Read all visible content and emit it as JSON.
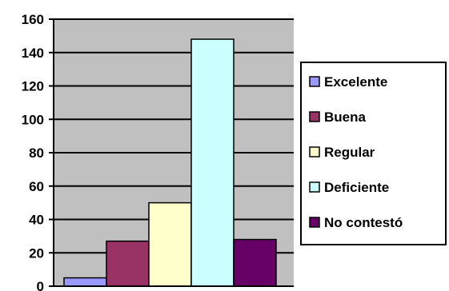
{
  "chart_data": {
    "type": "bar",
    "title": "",
    "xlabel": "",
    "ylabel": "",
    "ylim": [
      0,
      160
    ],
    "yticks": [
      0,
      20,
      40,
      60,
      80,
      100,
      120,
      140,
      160
    ],
    "grid": true,
    "legend_position": "right",
    "plot_background": "#c0c0c0",
    "series": [
      {
        "name": "Excelente",
        "value": 5,
        "color": "#9999ff"
      },
      {
        "name": "Buena",
        "value": 27,
        "color": "#993366"
      },
      {
        "name": "Regular",
        "value": 50,
        "color": "#ffffcc"
      },
      {
        "name": "Deficiente",
        "value": 148,
        "color": "#ccffff"
      },
      {
        "name": "No contestó",
        "value": 28,
        "color": "#660066"
      }
    ]
  }
}
